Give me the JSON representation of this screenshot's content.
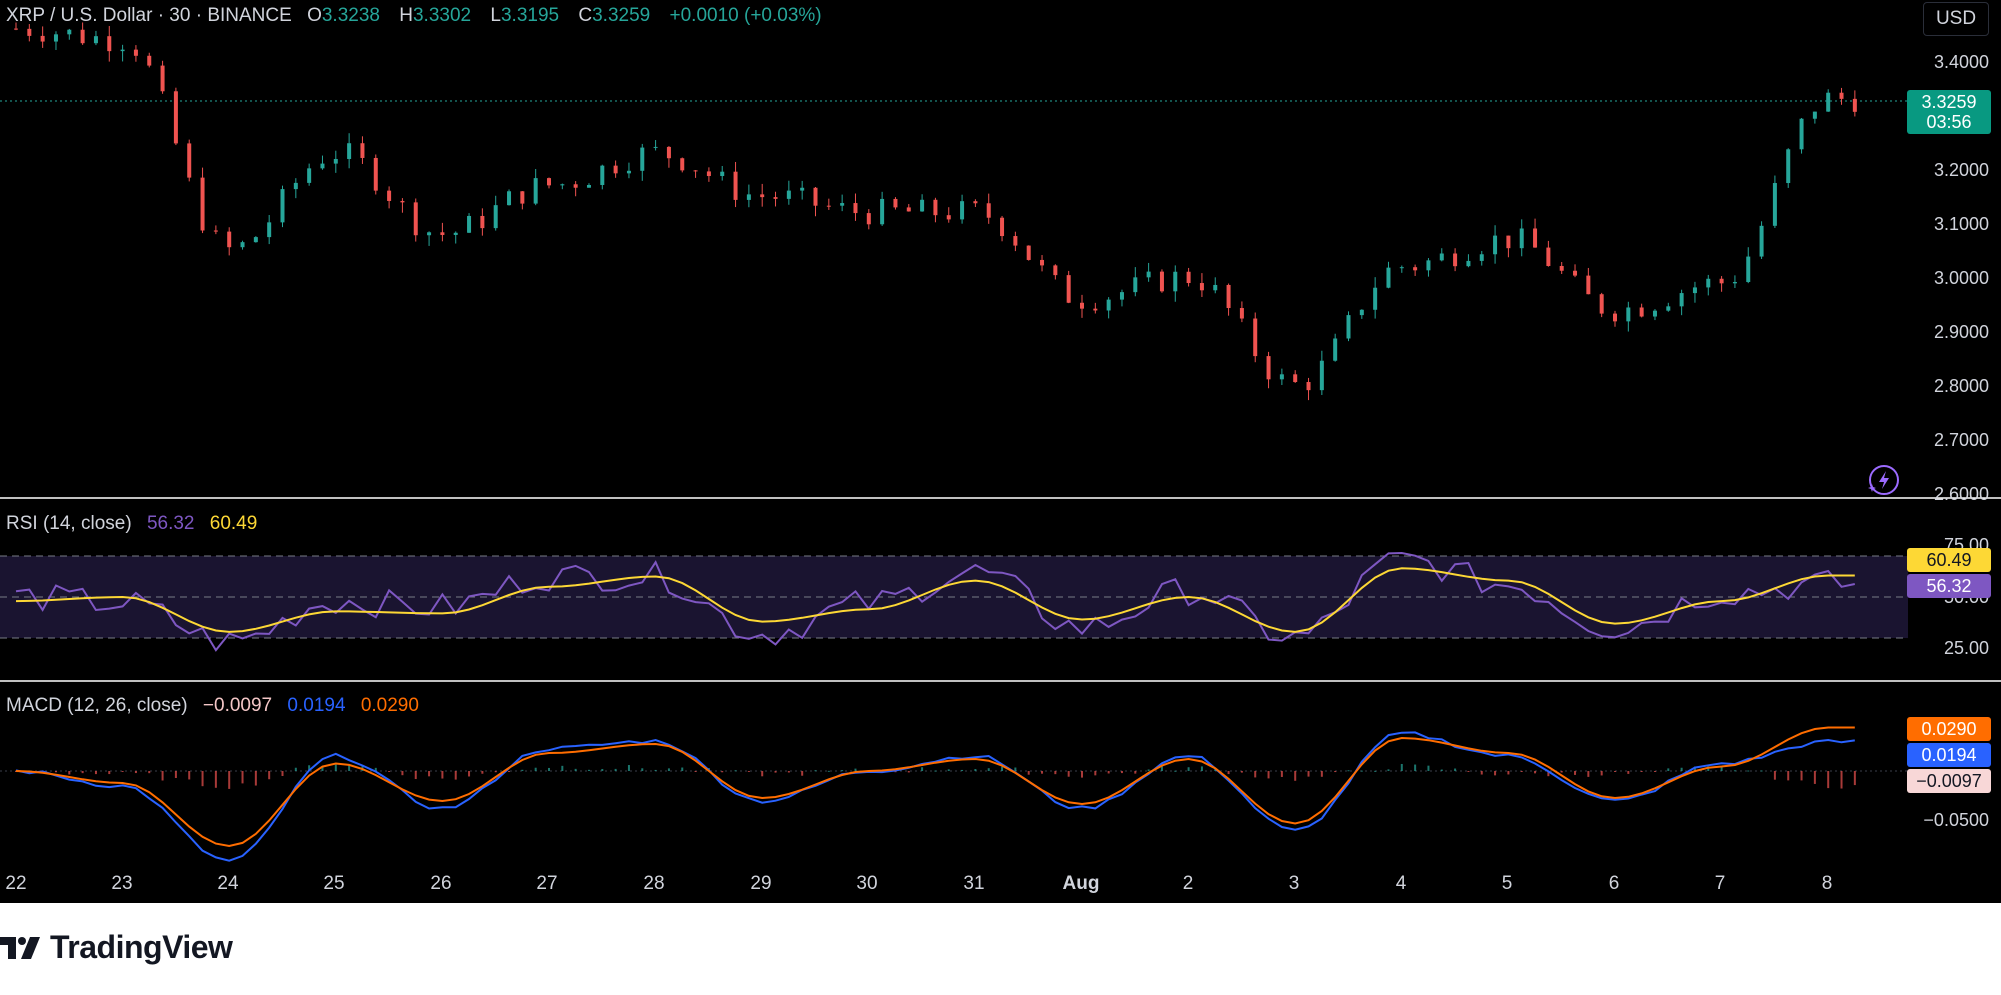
{
  "header": {
    "symbol_title": "XRP / U.S. Dollar · 30 · BINANCE",
    "ohlc": [
      {
        "key": "O",
        "value": "3.3238"
      },
      {
        "key": "H",
        "value": "3.3302"
      },
      {
        "key": "L",
        "value": "3.3195"
      },
      {
        "key": "C",
        "value": "3.3259"
      }
    ],
    "change": "+0.0010 (+0.03%)",
    "currency_button": "USD"
  },
  "price_axis": {
    "ticks": [
      "3.4000",
      "3.2000",
      "3.1000",
      "3.0000",
      "2.9000",
      "2.8000",
      "2.7000",
      "2.6000"
    ],
    "last_price": "3.3259",
    "countdown": "03:56"
  },
  "rsi": {
    "legend_label": "RSI (14, close)",
    "rsi_value": "56.32",
    "ma_value": "60.49",
    "ticks": [
      "75.00",
      "50.00",
      "25.00"
    ]
  },
  "macd": {
    "legend_label": "MACD (12, 26, close)",
    "histogram_value": "−0.0097",
    "macd_value": "0.0194",
    "signal_value": "0.0290",
    "ticks": [
      "−0.0500"
    ]
  },
  "time_axis": [
    "22",
    "23",
    "24",
    "25",
    "26",
    "27",
    "28",
    "29",
    "30",
    "31",
    "Aug",
    "2",
    "3",
    "4",
    "5",
    "6",
    "7",
    "8"
  ],
  "brand": {
    "name": "TradingView"
  },
  "colors": {
    "up": "#26a69a",
    "down": "#ef5350",
    "rsi_line": "#7e57c2",
    "rsi_ma": "#fdd835",
    "macd_line": "#2962ff",
    "signal_line": "#ff6d00",
    "last_price_badge": "#089981"
  },
  "chart_data": [
    {
      "type": "line",
      "title": "XRP / U.S. Dollar · 30 · BINANCE",
      "xlabel": "",
      "ylabel": "",
      "x": [
        "22",
        "23",
        "24",
        "25",
        "26",
        "27",
        "28",
        "29",
        "30",
        "31",
        "Aug",
        "2",
        "3",
        "4",
        "5",
        "6",
        "7",
        "8"
      ],
      "series": [
        {
          "name": "XRP / U.S. Dollar",
          "values": [
            3.46,
            3.44,
            3.05,
            3.23,
            3.08,
            3.17,
            3.23,
            3.15,
            3.12,
            3.12,
            2.96,
            3.0,
            2.8,
            3.02,
            3.07,
            2.94,
            2.99,
            3.33
          ]
        }
      ],
      "ylim": [
        2.6,
        3.45
      ],
      "grid": false
    },
    {
      "type": "line",
      "title": "RSI (14, close)",
      "x": [
        "22",
        "23",
        "24",
        "25",
        "26",
        "27",
        "28",
        "29",
        "30",
        "31",
        "Aug",
        "2",
        "3",
        "4",
        "5",
        "6",
        "7",
        "8"
      ],
      "series": [
        {
          "name": "RSI",
          "values": [
            50,
            47,
            28,
            48,
            45,
            60,
            60,
            32,
            47,
            62,
            35,
            53,
            30,
            68,
            56,
            35,
            52,
            56.32
          ]
        },
        {
          "name": "RSI MA",
          "values": [
            48,
            50,
            33,
            43,
            42,
            55,
            60,
            38,
            44,
            58,
            39,
            50,
            33,
            64,
            58,
            37,
            48,
            60.49
          ]
        }
      ],
      "ylim": [
        15,
        85
      ],
      "bands": [
        30,
        50,
        70
      ]
    },
    {
      "type": "line",
      "title": "MACD (12, 26, close)",
      "x": [
        "22",
        "23",
        "24",
        "25",
        "26",
        "27",
        "28",
        "29",
        "30",
        "31",
        "Aug",
        "2",
        "3",
        "4",
        "5",
        "6",
        "7",
        "8"
      ],
      "series": [
        {
          "name": "MACD",
          "values": [
            0.0,
            -0.01,
            -0.06,
            0.01,
            -0.025,
            0.015,
            0.02,
            -0.02,
            0.0,
            0.01,
            -0.025,
            0.01,
            -0.04,
            0.025,
            0.01,
            -0.02,
            0.005,
            0.0194
          ]
        },
        {
          "name": "Signal",
          "values": [
            0.0,
            -0.008,
            -0.05,
            0.005,
            -0.02,
            0.012,
            0.018,
            -0.018,
            0.0,
            0.008,
            -0.022,
            0.008,
            -0.035,
            0.022,
            0.012,
            -0.018,
            0.003,
            0.029
          ]
        },
        {
          "name": "Histogram",
          "values": [
            0.0,
            -0.002,
            -0.01,
            0.005,
            -0.005,
            0.003,
            0.002,
            -0.002,
            0.0,
            0.002,
            -0.003,
            0.002,
            -0.005,
            0.003,
            -0.002,
            -0.002,
            0.002,
            -0.0097
          ]
        }
      ],
      "ylim": [
        -0.06,
        0.07
      ]
    }
  ]
}
